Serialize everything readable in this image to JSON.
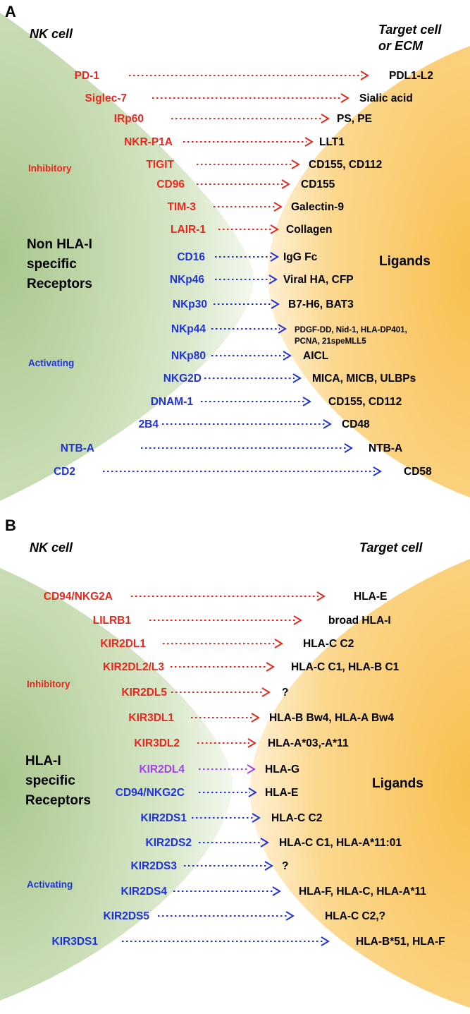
{
  "colors": {
    "inhibitory": "#e8281e",
    "activating": "#1f33d8",
    "special": "#a044e8",
    "nk_cell": "#c8ddb4",
    "target_cell": "#fbcd73"
  },
  "panel_a": {
    "letter": "A",
    "nk_title": "NK cell",
    "target_title": [
      "Target cell",
      "or ECM"
    ],
    "receptors_label": [
      "Non HLA-I",
      "specific",
      "Receptors"
    ],
    "inhibitory_label": "Inhibitory",
    "activating_label": "Activating",
    "ligands_label": "Ligands",
    "pairs": [
      {
        "receptor": "PD-1",
        "ligand": [
          "PDL1-L2"
        ],
        "type": "inhibitory"
      },
      {
        "receptor": "Siglec-7",
        "ligand": [
          "Sialic acid"
        ],
        "type": "inhibitory"
      },
      {
        "receptor": "IRp60",
        "ligand": [
          "PS, PE"
        ],
        "type": "inhibitory"
      },
      {
        "receptor": "NKR-P1A",
        "ligand": [
          "LLT1"
        ],
        "type": "inhibitory"
      },
      {
        "receptor": "TIGIT",
        "ligand": [
          "CD155, CD112"
        ],
        "type": "inhibitory"
      },
      {
        "receptor": "CD96",
        "ligand": [
          "CD155"
        ],
        "type": "inhibitory"
      },
      {
        "receptor": "TIM-3",
        "ligand": [
          "Galectin-9"
        ],
        "type": "inhibitory"
      },
      {
        "receptor": "LAIR-1",
        "ligand": [
          "Collagen"
        ],
        "type": "inhibitory"
      },
      {
        "receptor": "CD16",
        "ligand": [
          "IgG Fc"
        ],
        "type": "activating"
      },
      {
        "receptor": "NKp46",
        "ligand": [
          "Viral HA, CFP"
        ],
        "type": "activating"
      },
      {
        "receptor": "NKp30",
        "ligand": [
          "B7-H6, BAT3"
        ],
        "type": "activating"
      },
      {
        "receptor": "NKp44",
        "ligand": [
          "PDGF-DD, Nid-1, HLA-DP401,",
          "PCNA, 21speMLL5"
        ],
        "type": "activating"
      },
      {
        "receptor": "NKp80",
        "ligand": [
          "AICL"
        ],
        "type": "activating"
      },
      {
        "receptor": "NKG2D",
        "ligand": [
          "MICA, MICB, ULBPs"
        ],
        "type": "activating"
      },
      {
        "receptor": "DNAM-1",
        "ligand": [
          "CD155, CD112"
        ],
        "type": "activating"
      },
      {
        "receptor": "2B4",
        "ligand": [
          "CD48"
        ],
        "type": "activating"
      },
      {
        "receptor": "NTB-A",
        "ligand": [
          "NTB-A"
        ],
        "type": "activating"
      },
      {
        "receptor": "CD2",
        "ligand": [
          "CD58"
        ],
        "type": "activating"
      }
    ]
  },
  "panel_b": {
    "letter": "B",
    "nk_title": "NK cell",
    "target_title": [
      "Target cell"
    ],
    "receptors_label": [
      "HLA-I",
      "specific",
      "Receptors"
    ],
    "inhibitory_label": "Inhibitory",
    "activating_label": "Activating",
    "ligands_label": "Ligands",
    "pairs": [
      {
        "receptor": "CD94/NKG2A",
        "ligand": [
          "HLA-E"
        ],
        "type": "inhibitory"
      },
      {
        "receptor": "LILRB1",
        "ligand": [
          "broad HLA-I"
        ],
        "type": "inhibitory"
      },
      {
        "receptor": "KIR2DL1",
        "ligand": [
          "HLA-C C2"
        ],
        "type": "inhibitory"
      },
      {
        "receptor": "KIR2DL2/L3",
        "ligand": [
          "HLA-C C1, HLA-B C1"
        ],
        "type": "inhibitory"
      },
      {
        "receptor": "KIR2DL5",
        "ligand": [
          "?"
        ],
        "type": "inhibitory"
      },
      {
        "receptor": "KIR3DL1",
        "ligand": [
          "HLA-B Bw4, HLA-A Bw4"
        ],
        "type": "inhibitory"
      },
      {
        "receptor": "KIR3DL2",
        "ligand": [
          "HLA-A*03,-A*11"
        ],
        "type": "inhibitory"
      },
      {
        "receptor": "KIR2DL4",
        "ligand": [
          "HLA-G"
        ],
        "type": "special"
      },
      {
        "receptor": "CD94/NKG2C",
        "ligand": [
          "HLA-E"
        ],
        "type": "activating"
      },
      {
        "receptor": "KIR2DS1",
        "ligand": [
          "HLA-C C2"
        ],
        "type": "activating"
      },
      {
        "receptor": "KIR2DS2",
        "ligand": [
          "HLA-C C1, HLA-A*11:01"
        ],
        "type": "activating"
      },
      {
        "receptor": "KIR2DS3",
        "ligand": [
          "?"
        ],
        "type": "activating"
      },
      {
        "receptor": "KIR2DS4",
        "ligand": [
          "HLA-F, HLA-C, HLA-A*11"
        ],
        "type": "activating"
      },
      {
        "receptor": "KIR2DS5",
        "ligand": [
          "HLA-C C2,?"
        ],
        "type": "activating"
      },
      {
        "receptor": "KIR3DS1",
        "ligand": [
          "HLA-B*51, HLA-F"
        ],
        "type": "activating"
      }
    ]
  }
}
